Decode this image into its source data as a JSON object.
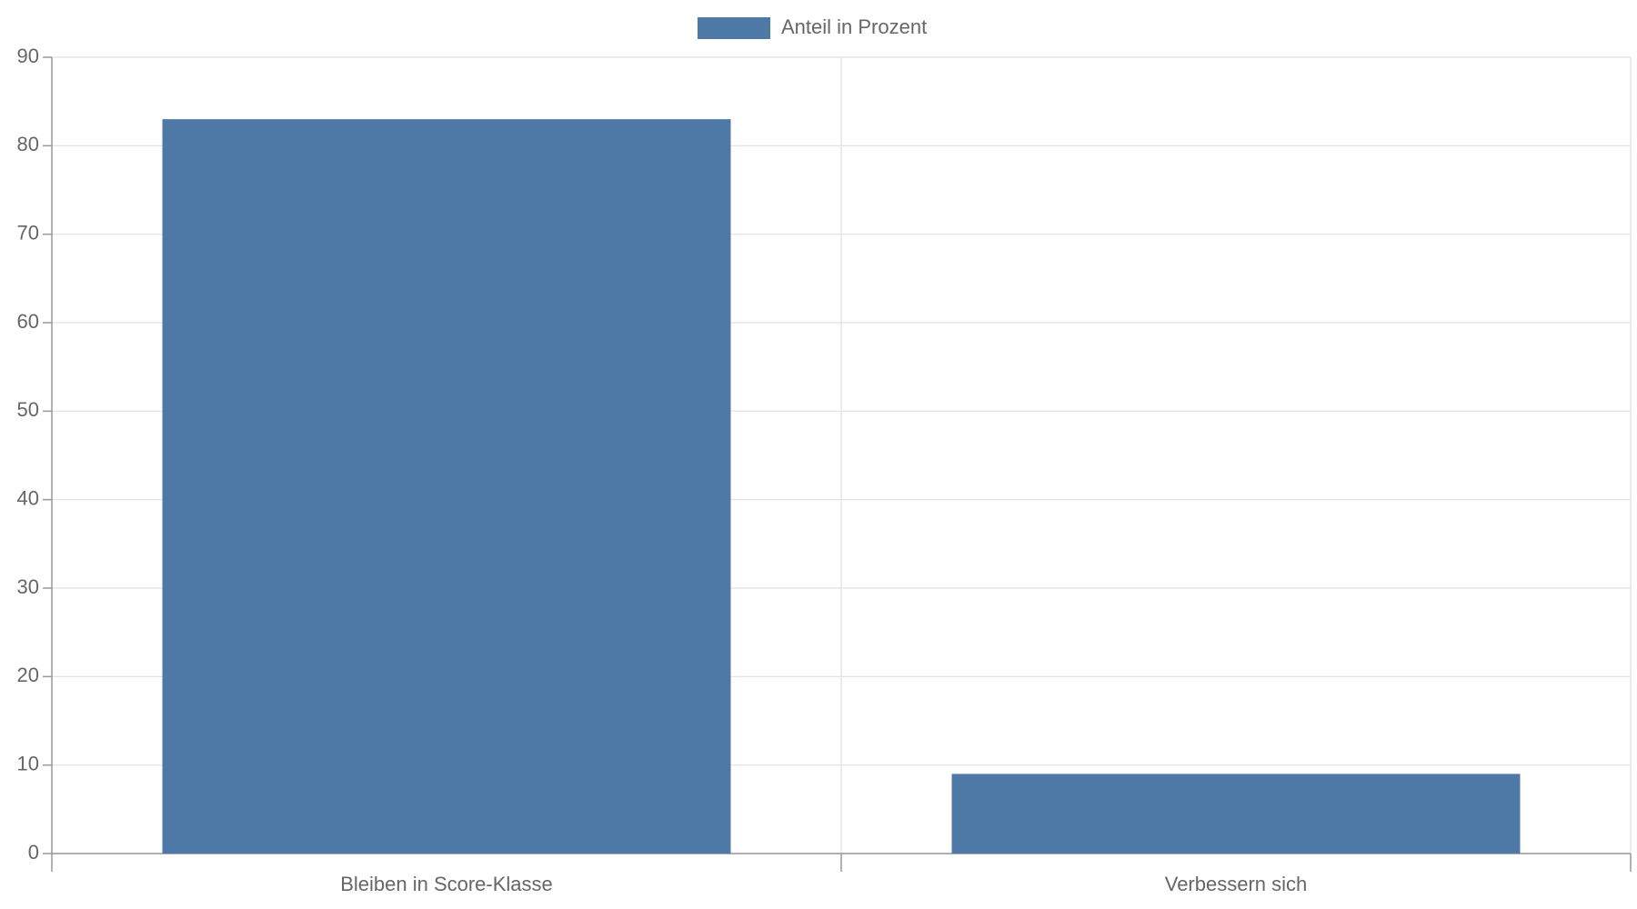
{
  "chart_data": {
    "type": "bar",
    "categories": [
      "Bleiben in Score-Klasse",
      "Verbessern sich"
    ],
    "series": [
      {
        "name": "Anteil in Prozent",
        "color": "#4e78a5",
        "values": [
          83,
          9
        ]
      }
    ],
    "ylim": [
      0,
      90
    ],
    "yticks": [
      0,
      10,
      20,
      30,
      40,
      50,
      60,
      70,
      80,
      90
    ],
    "grid": true,
    "legend": "top"
  }
}
